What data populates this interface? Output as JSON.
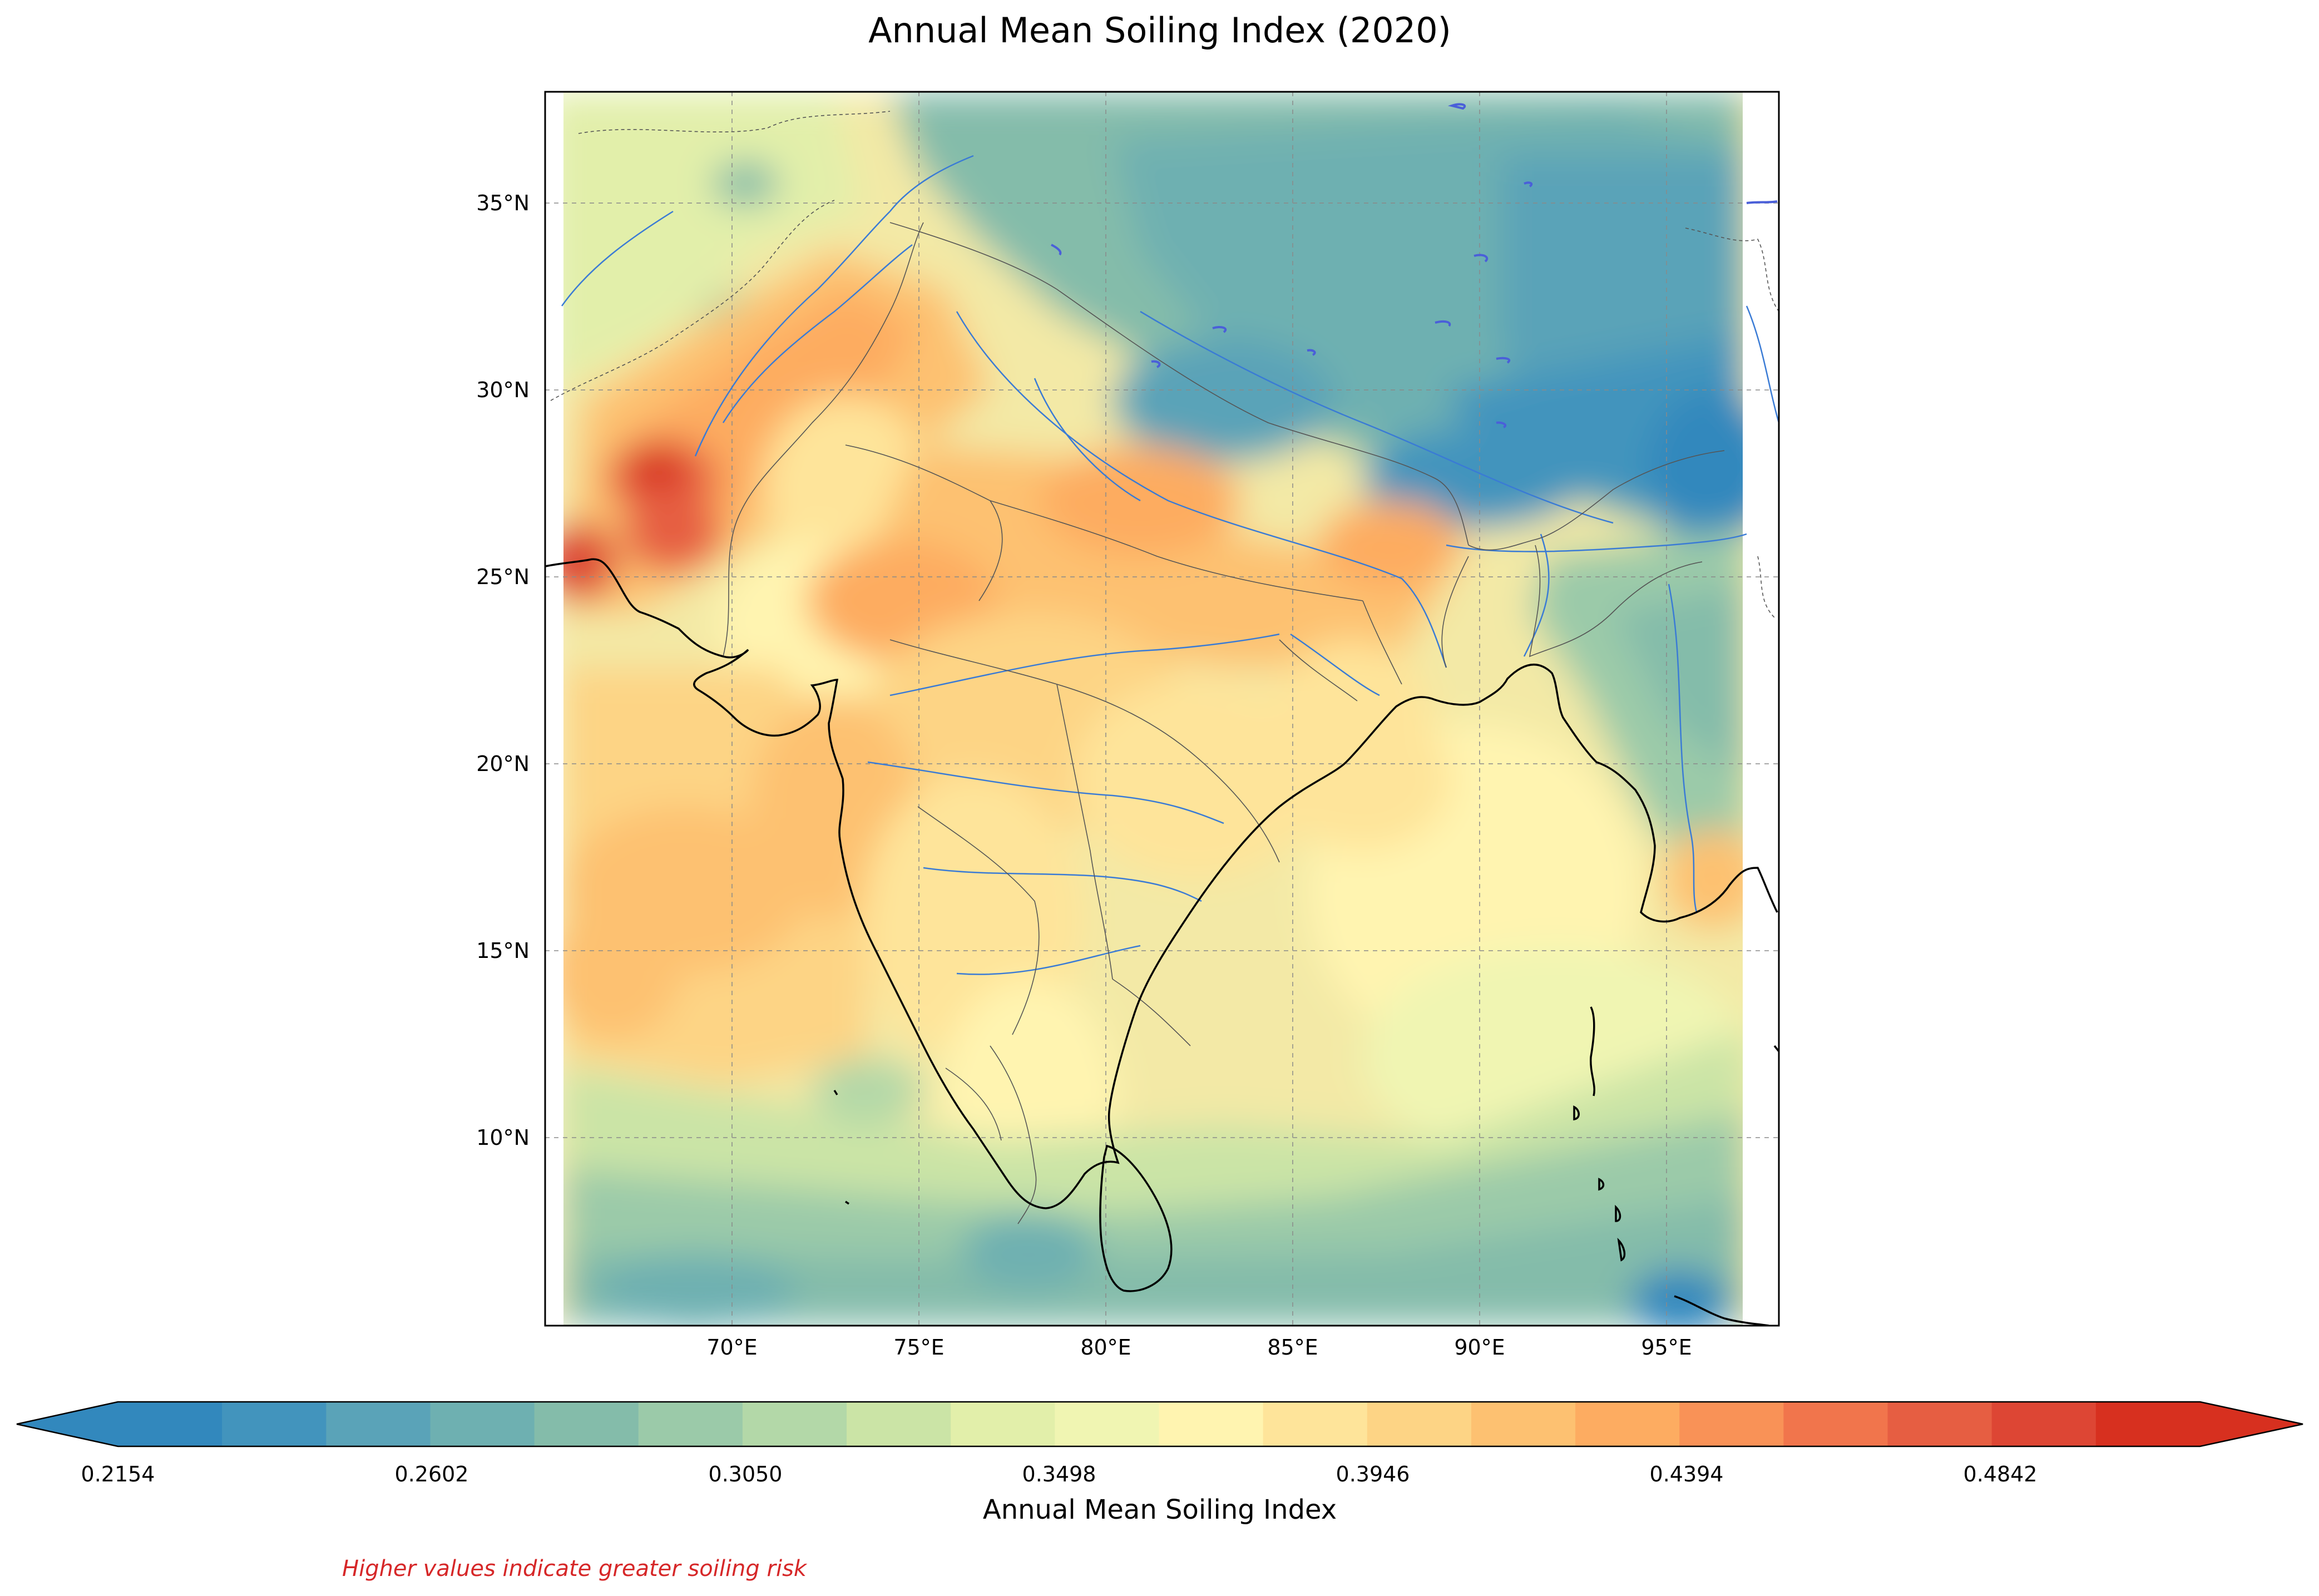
{
  "title": "Annual Mean Soiling Index (2020)",
  "colorbar": {
    "label": "Annual Mean Soiling Index",
    "tick_labels": [
      "0.2154",
      "0.2602",
      "0.3050",
      "0.3498",
      "0.3946",
      "0.4394",
      "0.4842"
    ],
    "colors": [
      "#3288bd",
      "#4294bd",
      "#5aa3b8",
      "#6eb0b1",
      "#84bcaa",
      "#9bcaa9",
      "#b3d8a8",
      "#cbe4a6",
      "#e2efaa",
      "#f0f5b2",
      "#fff4b0",
      "#fee49a",
      "#fdd485",
      "#fdc171",
      "#fdac61",
      "#f99257",
      "#f1754c",
      "#e65e42",
      "#dd4634",
      "#d7301f"
    ],
    "extend": "both"
  },
  "axes": {
    "x_tick_labels": [
      "70°E",
      "75°E",
      "80°E",
      "85°E",
      "90°E",
      "95°E"
    ],
    "y_tick_labels": [
      "35°N",
      "30°N",
      "25°N",
      "20°N",
      "15°N",
      "10°N"
    ],
    "lon_range": [
      65.5,
      98.0
    ],
    "lat_range": [
      5.0,
      38.0
    ],
    "gridlines": true
  },
  "note": "Higher values indicate greater soiling risk",
  "colors": {
    "note": "#d62728",
    "coastline": "#000000",
    "rivers": "#3a7bd5",
    "lakes": "#4a5fd9",
    "borders": "#555555"
  }
}
